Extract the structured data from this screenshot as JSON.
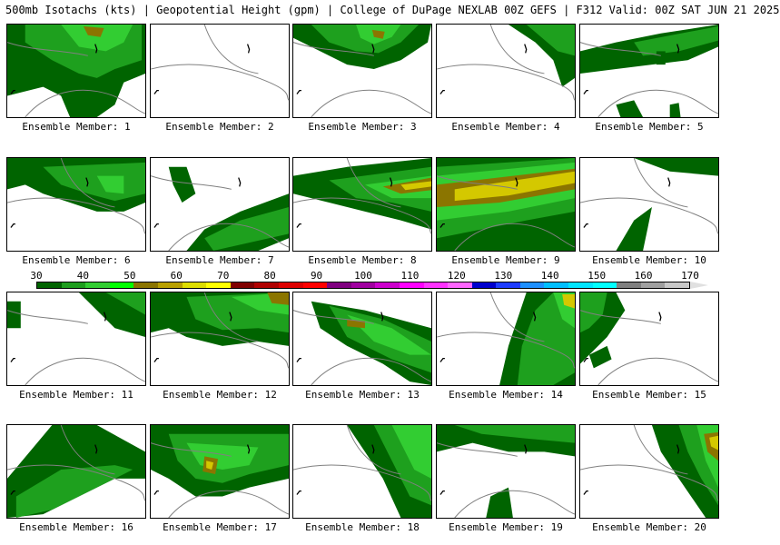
{
  "header": {
    "title": "500mb Isotachs (kts) | Geopotential Height (gpm) | College of DuPage NEXLAB   00Z GEFS | F312 Valid: 00Z SAT JUN 21 2025"
  },
  "panels": [
    {
      "label": "Ensemble Member: 1"
    },
    {
      "label": "Ensemble Member: 2"
    },
    {
      "label": "Ensemble Member: 3"
    },
    {
      "label": "Ensemble Member: 4"
    },
    {
      "label": "Ensemble Member: 5"
    },
    {
      "label": "Ensemble Member: 6"
    },
    {
      "label": "Ensemble Member: 7"
    },
    {
      "label": "Ensemble Member: 8"
    },
    {
      "label": "Ensemble Member: 9"
    },
    {
      "label": "Ensemble Member: 10"
    },
    {
      "label": "Ensemble Member: 11"
    },
    {
      "label": "Ensemble Member: 12"
    },
    {
      "label": "Ensemble Member: 13"
    },
    {
      "label": "Ensemble Member: 14"
    },
    {
      "label": "Ensemble Member: 15"
    },
    {
      "label": "Ensemble Member: 16"
    },
    {
      "label": "Ensemble Member: 17"
    },
    {
      "label": "Ensemble Member: 18"
    },
    {
      "label": "Ensemble Member: 19"
    },
    {
      "label": "Ensemble Member: 20"
    }
  ],
  "colorbar": {
    "labels": [
      "30",
      "40",
      "50",
      "60",
      "70",
      "80",
      "90",
      "100",
      "110",
      "120",
      "130",
      "140",
      "150",
      "160",
      "170"
    ],
    "colors": [
      "#006400",
      "#1e9e1e",
      "#32cd32",
      "#00ff00",
      "#8b7500",
      "#b8a000",
      "#dddd00",
      "#ffff00",
      "#800000",
      "#b00000",
      "#dd0000",
      "#ff0000",
      "#800080",
      "#a000a0",
      "#cc00cc",
      "#ff00ff",
      "#ff33ff",
      "#ff66ff",
      "#0000cd",
      "#1e3cff",
      "#1e90ff",
      "#00bfff",
      "#00e5ff",
      "#00ffff",
      "#808080",
      "#a0a0a0",
      "#c8c8c8"
    ]
  },
  "colors": {
    "dark_green": "#006400",
    "green": "#1ea01e",
    "light_green": "#32cd32",
    "bright_green": "#00ff00",
    "olive": "#8b7500",
    "yellow": "#d4c800",
    "contour": "#808080",
    "land": "#000000"
  }
}
